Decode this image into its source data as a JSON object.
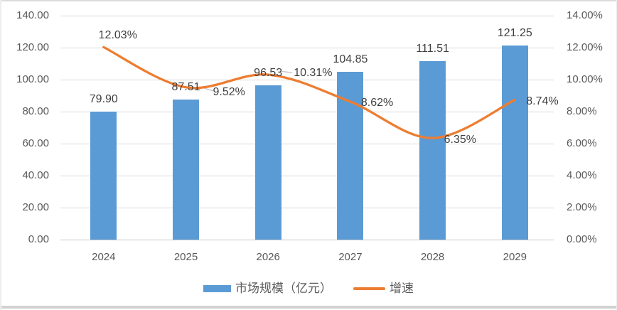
{
  "chart_data": {
    "type": "combo",
    "title": "",
    "categories": [
      "2024",
      "2025",
      "2026",
      "2027",
      "2028",
      "2029"
    ],
    "series": [
      {
        "name": "市场规模（亿元）",
        "type": "bar",
        "axis": "left",
        "color": "#5B9BD5",
        "values": [
          79.9,
          87.51,
          96.53,
          104.85,
          111.51,
          121.25
        ],
        "data_labels": [
          "79.90",
          "87.51",
          "96.53",
          "104.85",
          "111.51",
          "121.25"
        ]
      },
      {
        "name": "增速",
        "type": "line",
        "axis": "right",
        "smooth": true,
        "color": "#ED7D31",
        "values": [
          12.03,
          9.52,
          10.31,
          8.62,
          6.35,
          8.74
        ],
        "data_labels": [
          "12.03%",
          "9.52%",
          "10.31%",
          "8.62%",
          "6.35%",
          "8.74%"
        ]
      }
    ],
    "left_axis": {
      "min": 0,
      "max": 140,
      "tick_labels": [
        "140.00",
        "120.00",
        "100.00",
        "80.00",
        "60.00",
        "40.00",
        "20.00",
        "0.00"
      ]
    },
    "right_axis": {
      "min": 0,
      "max": 14,
      "tick_labels": [
        "14.00%",
        "12.00%",
        "10.00%",
        "8.00%",
        "6.00%",
        "4.00%",
        "2.00%",
        "0.00%"
      ]
    },
    "grid": true,
    "legend_position": "bottom"
  },
  "legend": {
    "items": [
      {
        "label": "市场规模（亿元）",
        "color": "#5B9BD5",
        "swatch": "rect"
      },
      {
        "label": "增速",
        "color": "#ED7D31",
        "swatch": "line"
      }
    ]
  },
  "colors": {
    "bar": "#5B9BD5",
    "line": "#ED7D31",
    "gridline": "#D9D9D9",
    "axis_text": "#595959",
    "data_label_text": "#404040",
    "leader_line": "#BFBFBF"
  }
}
